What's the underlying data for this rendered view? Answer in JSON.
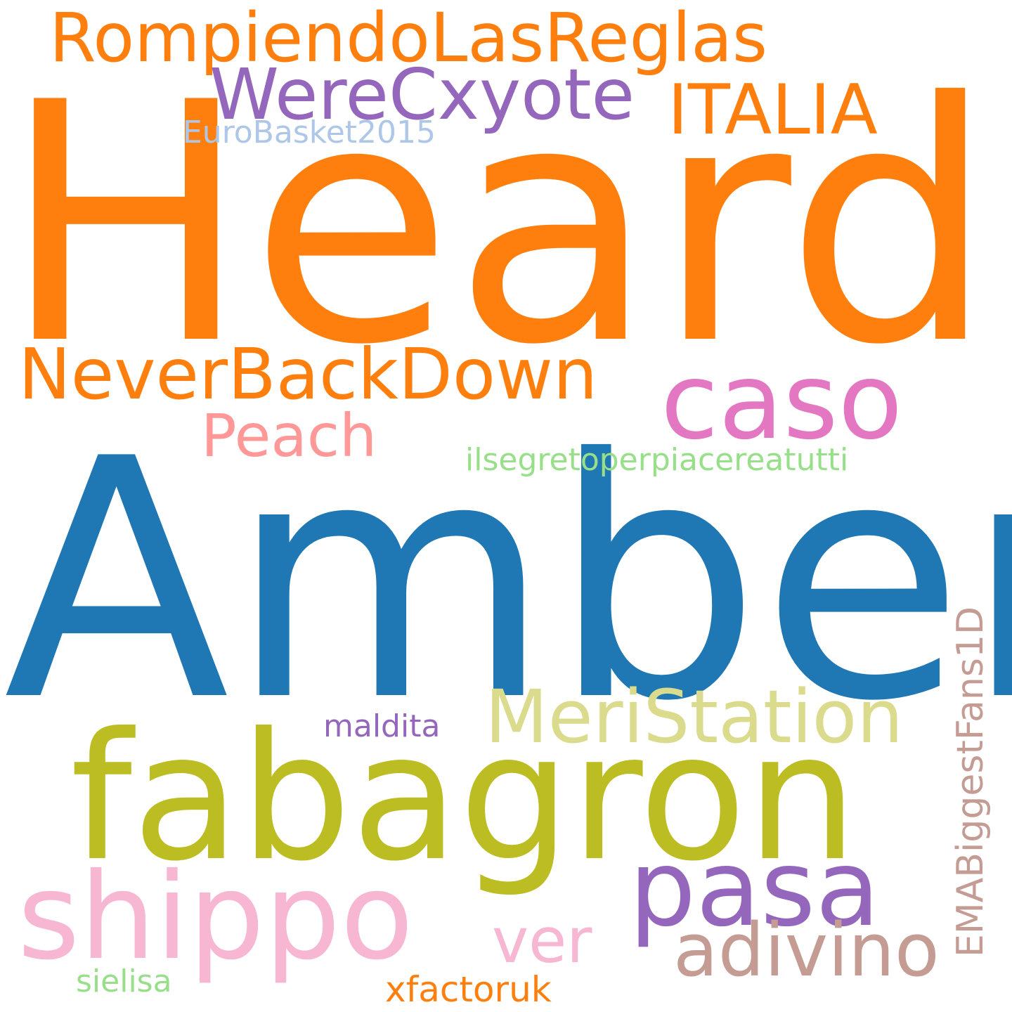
{
  "words": {
    "heard": {
      "text": "Heard",
      "color": "#ff7f0e"
    },
    "amber": {
      "text": "Amber",
      "color": "#1f77b4"
    },
    "fabagron": {
      "text": "fabagron",
      "color": "#bcbd22"
    },
    "caso": {
      "text": "caso",
      "color": "#e377c2"
    },
    "neverbackdown": {
      "text": "NeverBackDown",
      "color": "#ff7f0e"
    },
    "rompiendo": {
      "text": "RompiendoLasReglas",
      "color": "#ff7f0e"
    },
    "werecxyote": {
      "text": "WereCxyote",
      "color": "#9467bd"
    },
    "italia": {
      "text": "ITALIA",
      "color": "#ff7f0e"
    },
    "eurobasket": {
      "text": "EuroBasket2015",
      "color": "#aec7e8"
    },
    "peach": {
      "text": "Peach",
      "color": "#ff9896"
    },
    "ilsegreto": {
      "text": "ilsegretoperpiacereatutti",
      "color": "#98df8a"
    },
    "meristation": {
      "text": "MeriStation",
      "color": "#dbdb8d"
    },
    "maldita": {
      "text": "maldita",
      "color": "#9467bd"
    },
    "pasa": {
      "text": "pasa",
      "color": "#9467bd"
    },
    "shippo": {
      "text": "shippo",
      "color": "#f7b6d2"
    },
    "ver": {
      "text": "ver",
      "color": "#f7b6d2"
    },
    "adivino": {
      "text": "adivino",
      "color": "#c49c94"
    },
    "sielisa": {
      "text": "sielisa",
      "color": "#98df8a"
    },
    "xfactoruk": {
      "text": "xfactoruk",
      "color": "#ff7f0e"
    },
    "emabiggest": {
      "text": "EMABiggestFans1D",
      "color": "#c49c94"
    }
  }
}
